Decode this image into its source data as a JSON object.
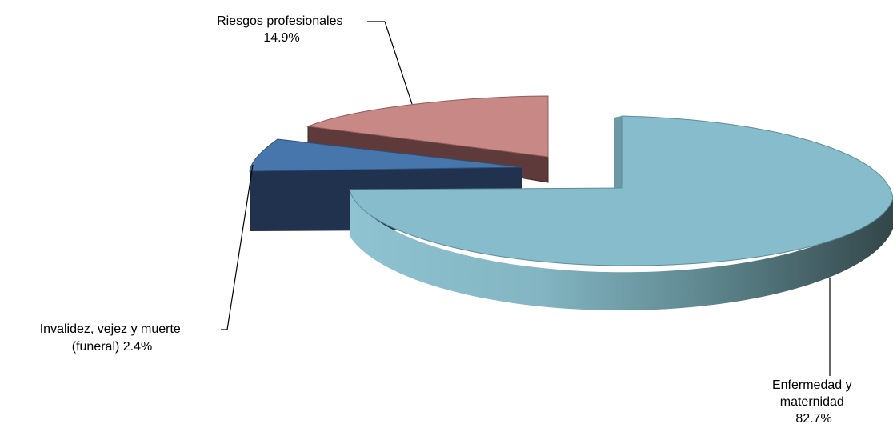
{
  "chart_data": {
    "type": "pie",
    "variant": "3d-exploded",
    "title": "",
    "slices": [
      {
        "name": "Enfermedad y maternidad",
        "value": 82.7,
        "label_lines": [
          "Enfermedad  y",
          "maternidad",
          "82.7%"
        ],
        "color": "#86bccb",
        "side_color_dark": "#3a5055"
      },
      {
        "name": "Invalidez, vejez y muerte (funeral)",
        "value": 2.4,
        "label_lines": [
          "Invalidez,  vejez  y  muerte",
          "(funeral)  2.4%"
        ],
        "color": "#4776ac",
        "side_color_dark": "#20324d"
      },
      {
        "name": "Riesgos profesionales",
        "value": 14.9,
        "label_lines": [
          "Riesgos  profesionales",
          "14.9%"
        ],
        "color": "#c88886",
        "side_color_dark": "#5e3a3a"
      }
    ],
    "legend": "none",
    "grid": false
  }
}
